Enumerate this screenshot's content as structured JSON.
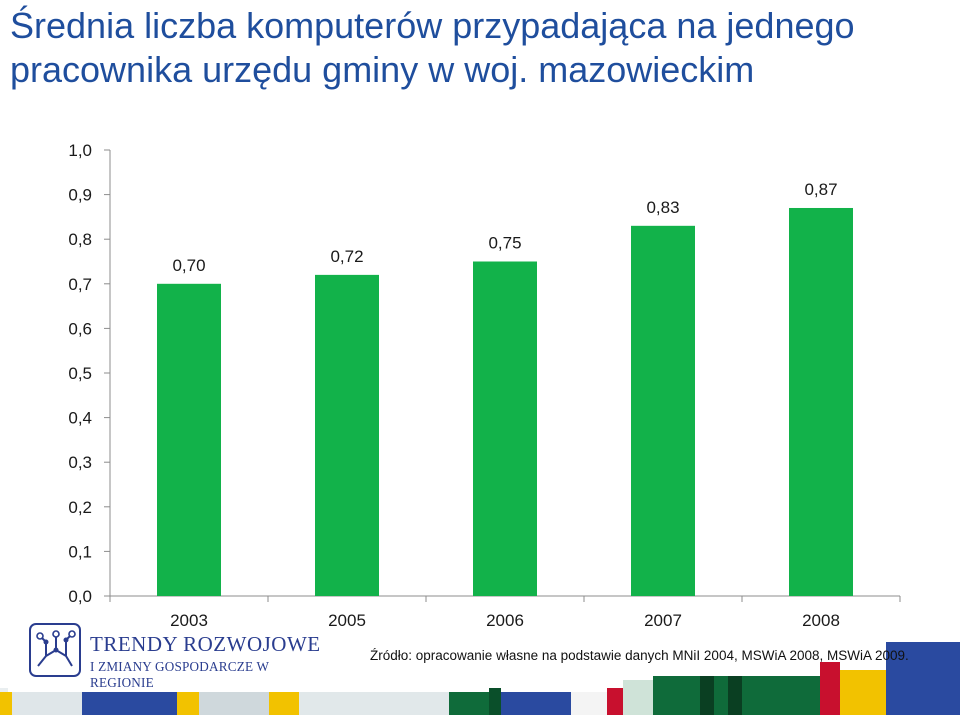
{
  "title": "Średnia liczba komputerów przypadająca na jednego pracownika urzędu gminy w woj. mazowieckim",
  "chart_data": {
    "type": "bar",
    "categories": [
      "2003",
      "2005",
      "2006",
      "2007",
      "2008"
    ],
    "values": [
      0.7,
      0.72,
      0.75,
      0.83,
      0.87
    ],
    "value_labels": [
      "0,70",
      "0,72",
      "0,75",
      "0,83",
      "0,87"
    ],
    "ylim": [
      0,
      1.0
    ],
    "y_ticks": [
      "0,0",
      "0,1",
      "0,2",
      "0,3",
      "0,4",
      "0,5",
      "0,6",
      "0,7",
      "0,8",
      "0,9",
      "1,0"
    ],
    "xlabel": "",
    "ylabel": "",
    "grid": false,
    "bar_color": "#12b24a"
  },
  "logo": {
    "line1": "TRENDY ROZWOJOWE",
    "line2": "I ZMIANY GOSPODARCZE W REGIONIE"
  },
  "source": "Źródło: opracowanie własne na podstawie danych MNiI 2004, MSWiA 2008, MSWiA 2009.",
  "colors": {
    "title": "#1f4e9d",
    "bar": "#12b24a",
    "logo": "#2a3d8f",
    "footer_green": "#0f6b3a",
    "footer_yellow": "#f2c200",
    "footer_blue": "#2a4aa0",
    "footer_red": "#c8102e"
  }
}
